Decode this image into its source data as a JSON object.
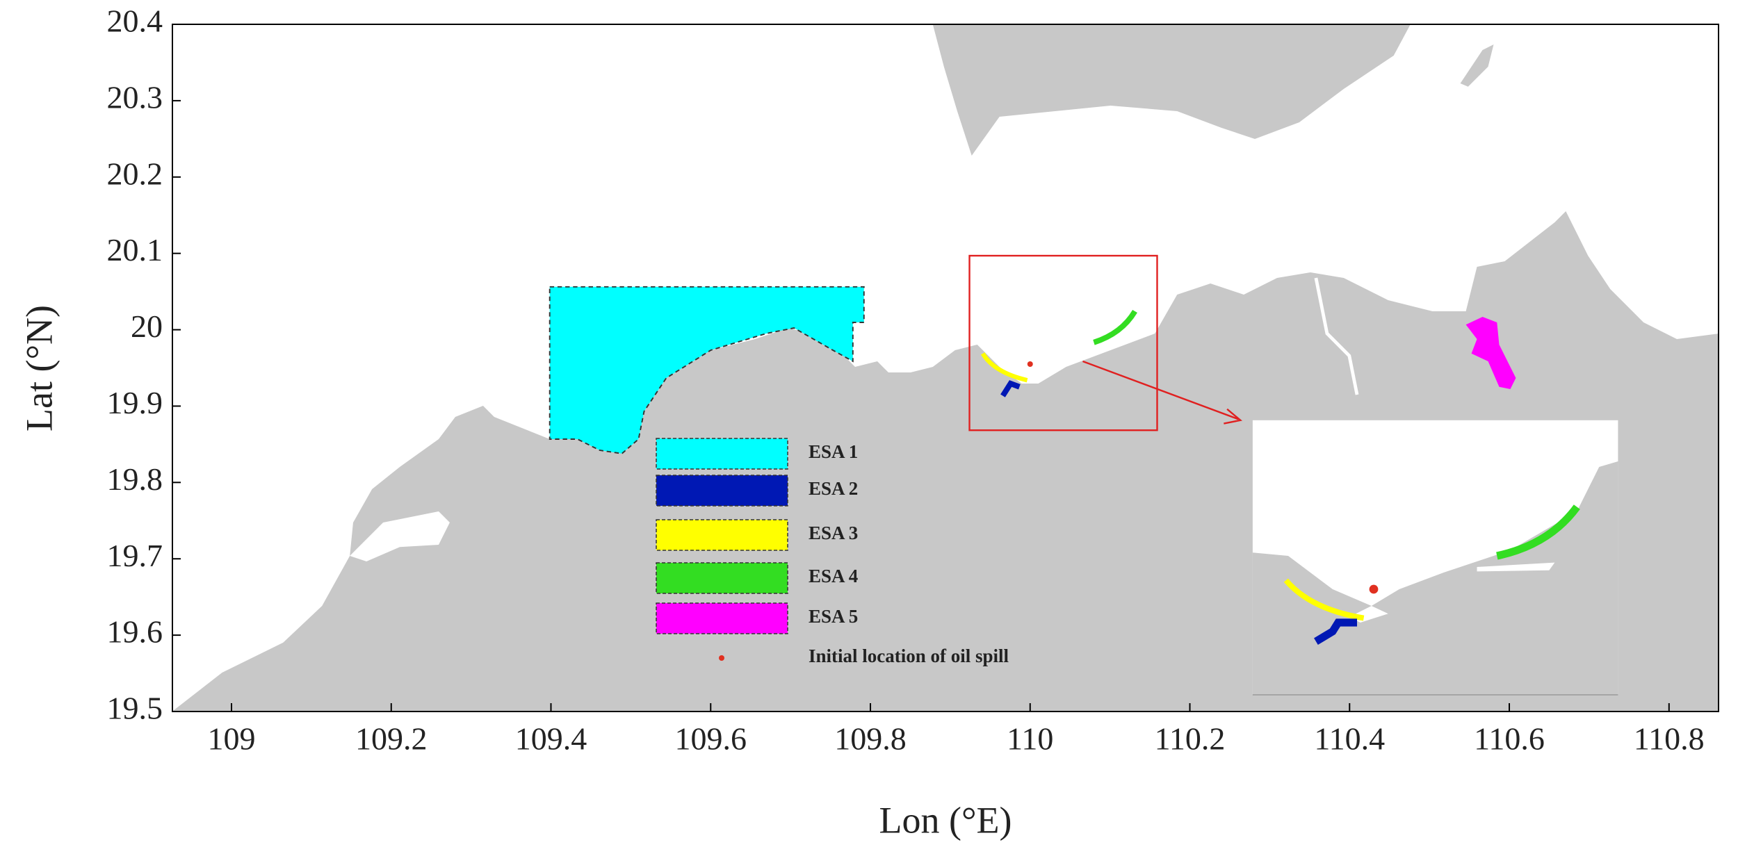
{
  "chart_data": {
    "type": "map",
    "xlabel": "Lon (°E)",
    "ylabel": "Lat (°N)",
    "xlim": [
      108.926,
      110.862
    ],
    "ylim": [
      19.5,
      20.4
    ],
    "xticks": [
      109,
      109.2,
      109.4,
      109.6,
      109.8,
      110,
      110.2,
      110.4,
      110.6,
      110.8
    ],
    "yticks": [
      19.5,
      19.6,
      19.7,
      19.8,
      19.9,
      20,
      20.1,
      20.2,
      20.3,
      20.4
    ],
    "legend": [
      {
        "name": "ESA 1",
        "color": "#00ffff"
      },
      {
        "name": "ESA 2",
        "color": "#0018b4"
      },
      {
        "name": "ESA 3",
        "color": "#ffff00"
      },
      {
        "name": "ESA 4",
        "color": "#33dd22"
      },
      {
        "name": "ESA 5",
        "color": "#ff00ff"
      }
    ],
    "spill": {
      "name": "Initial location of oil spill",
      "color": "#e03020",
      "x": 110.0,
      "y": 19.955
    }
  }
}
